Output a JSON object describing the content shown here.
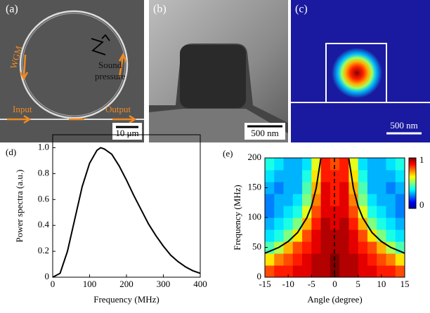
{
  "images": [
    {
      "label": "(a)",
      "annotations": [
        "WGM",
        "Sound",
        "pressure",
        "Input",
        "Output"
      ],
      "scalebar": "10 μm"
    },
    {
      "label": "(b)",
      "scalebar": "500 nm"
    },
    {
      "label": "(c)",
      "scalebar": "500 nm"
    }
  ],
  "chart_data": [
    {
      "type": "line",
      "label": "(d)",
      "xlabel": "Frequency (MHz)",
      "ylabel": "Power spectra (a.u.)",
      "xlim": [
        0,
        400
      ],
      "xticks": [
        0,
        100,
        200,
        300,
        400
      ],
      "ylim": [
        0,
        1.1
      ],
      "yticks": [
        0,
        0.2,
        0.4,
        0.6,
        0.8,
        {
          "value": 1,
          "label": "1.0"
        }
      ],
      "x": [
        0,
        20,
        40,
        60,
        80,
        100,
        120,
        130,
        140,
        160,
        180,
        200,
        220,
        240,
        260,
        280,
        300,
        320,
        340,
        360,
        380,
        400
      ],
      "series": [
        {
          "color": "#000000",
          "values": [
            0,
            0.03,
            0.2,
            0.45,
            0.7,
            0.88,
            0.98,
            1.0,
            0.99,
            0.95,
            0.86,
            0.75,
            0.63,
            0.52,
            0.41,
            0.32,
            0.24,
            0.17,
            0.12,
            0.08,
            0.05,
            0.03
          ]
        }
      ]
    },
    {
      "type": "heatmap",
      "label": "(e)",
      "xlabel": "Angle (degree)",
      "ylabel": "Frequency (MHz)",
      "xlim": [
        -15,
        15
      ],
      "xticks": [
        -15,
        -10,
        -5,
        0,
        5,
        10,
        15
      ],
      "ylim": [
        0,
        200
      ],
      "yticks": [
        0,
        50,
        100,
        150,
        200
      ],
      "colormap": "jet",
      "zlim": [
        0,
        1
      ],
      "zticks": [
        0,
        1
      ],
      "x": [
        -14,
        -12,
        -10,
        -8,
        -6,
        -4,
        -2,
        0,
        2,
        4,
        6,
        8,
        10,
        12,
        14
      ],
      "y": [
        10,
        30,
        50,
        70,
        90,
        110,
        130,
        150,
        170,
        190
      ],
      "z": [
        [
          0.8,
          0.85,
          0.85,
          0.9,
          0.9,
          0.95,
          0.95,
          1,
          0.95,
          0.95,
          0.9,
          0.9,
          0.85,
          0.85,
          0.8
        ],
        [
          0.65,
          0.75,
          0.8,
          0.85,
          0.9,
          0.95,
          0.95,
          1,
          0.95,
          0.95,
          0.9,
          0.85,
          0.8,
          0.75,
          0.65
        ],
        [
          0.45,
          0.55,
          0.7,
          0.8,
          0.85,
          0.9,
          0.95,
          0.95,
          0.95,
          0.9,
          0.85,
          0.8,
          0.7,
          0.55,
          0.45
        ],
        [
          0.35,
          0.4,
          0.5,
          0.65,
          0.8,
          0.9,
          0.95,
          0.95,
          0.95,
          0.9,
          0.8,
          0.65,
          0.5,
          0.4,
          0.35
        ],
        [
          0.3,
          0.35,
          0.4,
          0.5,
          0.7,
          0.85,
          0.95,
          0.9,
          0.95,
          0.85,
          0.7,
          0.5,
          0.4,
          0.35,
          0.3
        ],
        [
          0.25,
          0.3,
          0.35,
          0.4,
          0.6,
          0.8,
          0.9,
          0.9,
          0.9,
          0.8,
          0.6,
          0.4,
          0.35,
          0.3,
          0.25
        ],
        [
          0.25,
          0.3,
          0.3,
          0.35,
          0.5,
          0.75,
          0.9,
          0.85,
          0.9,
          0.75,
          0.5,
          0.35,
          0.3,
          0.3,
          0.25
        ],
        [
          0.3,
          0.25,
          0.3,
          0.3,
          0.45,
          0.7,
          0.9,
          0.85,
          0.9,
          0.7,
          0.45,
          0.3,
          0.3,
          0.25,
          0.3
        ],
        [
          0.35,
          0.3,
          0.3,
          0.3,
          0.4,
          0.65,
          0.85,
          0.85,
          0.85,
          0.65,
          0.4,
          0.3,
          0.3,
          0.3,
          0.35
        ],
        [
          0.4,
          0.35,
          0.3,
          0.3,
          0.35,
          0.6,
          0.85,
          0.8,
          0.85,
          0.6,
          0.35,
          0.3,
          0.3,
          0.35,
          0.4
        ]
      ],
      "series": [
        {
          "color": "#000000",
          "x": [
            -15,
            -12,
            -10,
            -8,
            -6,
            -5,
            -4,
            -3
          ],
          "values": [
            40.2,
            50,
            59.9,
            74.7,
            99.5,
            119,
            149,
            199
          ]
        },
        {
          "color": "#000000",
          "x": [
            3,
            4,
            5,
            6,
            8,
            10,
            12,
            15
          ],
          "values": [
            199,
            149,
            119,
            99.5,
            74.7,
            59.9,
            50,
            40.2
          ]
        }
      ]
    }
  ]
}
